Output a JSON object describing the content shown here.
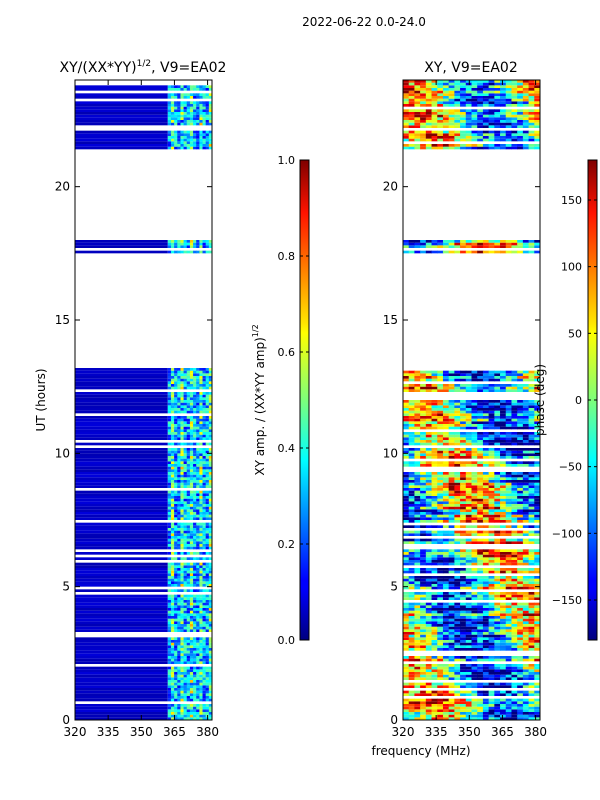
{
  "figure_title": "2022-06-22 0.0-24.0",
  "shared_xlabel": "frequency (MHz)",
  "chart_data": [
    {
      "type": "heatmap",
      "title_prefix": "XY/(XX*YY)",
      "title_superscript": "1/2",
      "title_suffix": ", V9=EA02",
      "xlabel": "",
      "ylabel": "UT (hours)",
      "xlim": [
        320,
        382
      ],
      "ylim": [
        0,
        24
      ],
      "xticks": [
        320,
        335,
        350,
        365,
        380
      ],
      "yticks": [
        0,
        5,
        10,
        15,
        20
      ],
      "colorbar": {
        "label_prefix": "XY amp. / (XX*YY amp)",
        "label_superscript": "1/2",
        "range": [
          0.0,
          1.0
        ],
        "ticks": [
          0.0,
          0.2,
          0.4,
          0.6,
          0.8,
          1.0
        ],
        "tick_labels": [
          "0.0",
          "0.2",
          "0.4",
          "0.6",
          "0.8",
          "1.0"
        ],
        "colormap": "jet"
      },
      "data_coverage_ut": [
        [
          0.0,
          13.1
        ],
        [
          17.4,
          17.9
        ],
        [
          21.4,
          22.1
        ],
        [
          22.2,
          24.0
        ]
      ],
      "gap_ut": [
        [
          13.1,
          17.4
        ],
        [
          17.9,
          21.4
        ]
      ],
      "typical_value_low_band": 0.05,
      "typical_value_high_band": 0.4,
      "high_band_mhz": [
        362,
        382
      ]
    },
    {
      "type": "heatmap",
      "title": "XY, V9=EA02",
      "xlabel": "",
      "ylabel": "",
      "xlim": [
        320,
        382
      ],
      "ylim": [
        0,
        24
      ],
      "xticks": [
        320,
        335,
        350,
        365,
        380
      ],
      "yticks": [
        0,
        5,
        10,
        15,
        20
      ],
      "colorbar": {
        "label": "phase (deg)",
        "range": [
          -180,
          180
        ],
        "ticks": [
          -150,
          -100,
          -50,
          0,
          50,
          100,
          150
        ],
        "tick_labels": [
          "−150",
          "−100",
          "−50",
          "0",
          "50",
          "100",
          "150"
        ],
        "colormap": "jet"
      },
      "data_coverage_ut": [
        [
          0.0,
          13.1
        ],
        [
          17.4,
          17.9
        ],
        [
          21.4,
          22.1
        ],
        [
          22.2,
          24.0
        ]
      ],
      "gap_ut": [
        [
          13.1,
          17.4
        ],
        [
          17.9,
          21.4
        ]
      ]
    }
  ]
}
